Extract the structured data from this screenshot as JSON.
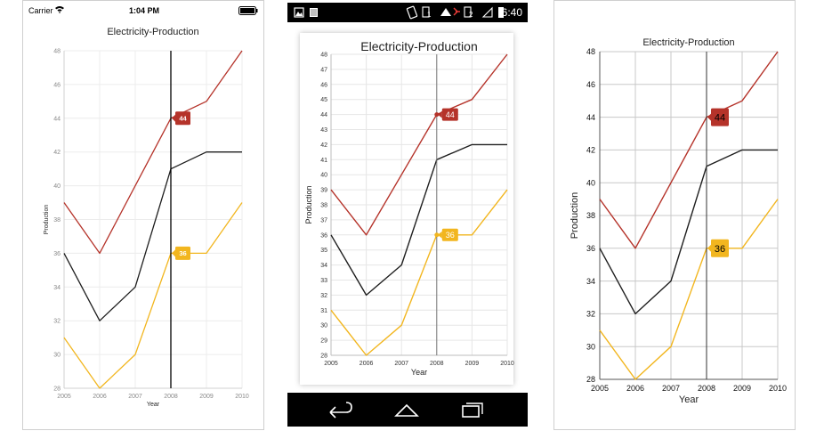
{
  "ios_status": {
    "carrier": "Carrier",
    "time": "1:04 PM"
  },
  "android_status": {
    "time": "6:40",
    "sim1": "1",
    "sim2": "2"
  },
  "chart_data": [
    {
      "type": "line",
      "platform": "iOS",
      "title": "Electricity-Production",
      "xlabel": "Year",
      "ylabel": "Production",
      "x": [
        2005,
        2006,
        2007,
        2008,
        2009,
        2010
      ],
      "series": [
        {
          "values": [
            39,
            36,
            40,
            44,
            45,
            48
          ],
          "color": "#b5332a"
        },
        {
          "values": [
            36,
            32,
            34,
            41,
            42,
            42
          ],
          "color": "#1e1e1e"
        },
        {
          "values": [
            31,
            28,
            30,
            36,
            36,
            39
          ],
          "color": "#f2b61f"
        }
      ],
      "ylim": [
        28,
        48
      ],
      "ytick_step": 2,
      "grid": true,
      "trackball": {
        "x": 2008,
        "labels": [
          {
            "value": "44",
            "color": "#b5332a"
          },
          {
            "value": "36",
            "color": "#f2b61f"
          }
        ]
      }
    },
    {
      "type": "line",
      "platform": "Android",
      "title": "Electricity-Production",
      "xlabel": "Year",
      "ylabel": "Production",
      "x": [
        2005,
        2006,
        2007,
        2008,
        2009,
        2010
      ],
      "series": [
        {
          "values": [
            39,
            36,
            40,
            44,
            45,
            48
          ],
          "color": "#b5332a"
        },
        {
          "values": [
            36,
            32,
            34,
            41,
            42,
            42
          ],
          "color": "#1e1e1e"
        },
        {
          "values": [
            31,
            28,
            30,
            36,
            36,
            39
          ],
          "color": "#f2b61f"
        }
      ],
      "ylim": [
        28,
        48
      ],
      "ytick_step": 1,
      "grid": true,
      "trackball": {
        "x": 2008,
        "labels": [
          {
            "value": "44",
            "color": "#b5332a"
          },
          {
            "value": "36",
            "color": "#f2b61f"
          }
        ]
      }
    },
    {
      "type": "line",
      "platform": "UWP",
      "title": "Electricity-Production",
      "xlabel": "Year",
      "ylabel": "Production",
      "x": [
        2005,
        2006,
        2007,
        2008,
        2009,
        2010
      ],
      "series": [
        {
          "values": [
            39,
            36,
            40,
            44,
            45,
            48
          ],
          "color": "#b5332a"
        },
        {
          "values": [
            36,
            32,
            34,
            41,
            42,
            42
          ],
          "color": "#1e1e1e"
        },
        {
          "values": [
            31,
            28,
            30,
            36,
            36,
            39
          ],
          "color": "#f2b61f"
        }
      ],
      "ylim": [
        28,
        48
      ],
      "ytick_step": 2,
      "grid": true,
      "trackball": {
        "x": 2008,
        "labels": [
          {
            "value": "44",
            "color": "#b5332a"
          },
          {
            "value": "36",
            "color": "#f2b61f"
          }
        ]
      }
    }
  ]
}
